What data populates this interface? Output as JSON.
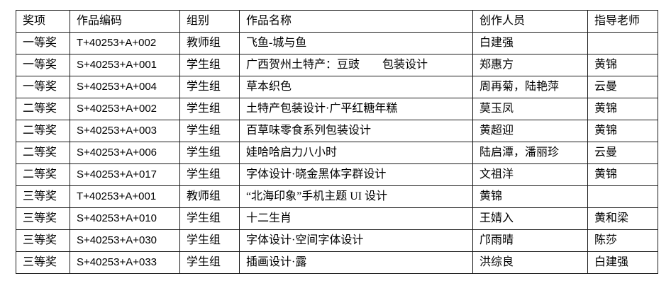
{
  "colors": {
    "background": "#ffffff",
    "border": "#1b1b1b",
    "text": "#000000"
  },
  "table": {
    "columns": [
      {
        "key": "award",
        "label": "奖项"
      },
      {
        "key": "code",
        "label": "作品编码"
      },
      {
        "key": "group",
        "label": "组别"
      },
      {
        "key": "title",
        "label": "作品名称"
      },
      {
        "key": "creators",
        "label": "创作人员"
      },
      {
        "key": "teacher",
        "label": "指导老师"
      }
    ],
    "rows": [
      [
        "一等奖",
        "T+40253+A+002",
        "教师组",
        "飞鱼-城与鱼",
        "白建强",
        ""
      ],
      [
        "一等奖",
        "S+40253+A+001",
        "学生组",
        "广西贺州土特产：豆豉　　包装设计",
        "郑惠方",
        "黄锦"
      ],
      [
        "一等奖",
        "S+40253+A+004",
        "学生组",
        "草本织色",
        "周再菊，陆艳萍",
        "云曼"
      ],
      [
        "二等奖",
        "S+40253+A+002",
        "学生组",
        "土特产包装设计·广平红糖年糕",
        "莫玉凤",
        "黄锦"
      ],
      [
        "二等奖",
        "S+40253+A+003",
        "学生组",
        "百草味零食系列包装设计",
        "黄超迎",
        "黄锦"
      ],
      [
        "二等奖",
        "S+40253+A+006",
        "学生组",
        "娃哈哈启力八小时",
        "陆启潭，潘丽珍",
        "云曼"
      ],
      [
        "二等奖",
        "S+40253+A+017",
        "学生组",
        "字体设计·晓金黑体字群设计",
        "文祖洋",
        "黄锦"
      ],
      [
        "三等奖",
        "T+40253+A+001",
        "教师组",
        "“北海印象”手机主题 UI 设计",
        "黄锦",
        ""
      ],
      [
        "三等奖",
        "S+40253+A+010",
        "学生组",
        "十二生肖",
        "王婧入",
        "黄和梁"
      ],
      [
        "三等奖",
        "S+40253+A+030",
        "学生组",
        "字体设计·空间字体设计",
        "邝雨晴",
        "陈莎"
      ],
      [
        "三等奖",
        "S+40253+A+033",
        "学生组",
        "插画设计·露",
        "洪综良",
        "白建强"
      ]
    ]
  }
}
